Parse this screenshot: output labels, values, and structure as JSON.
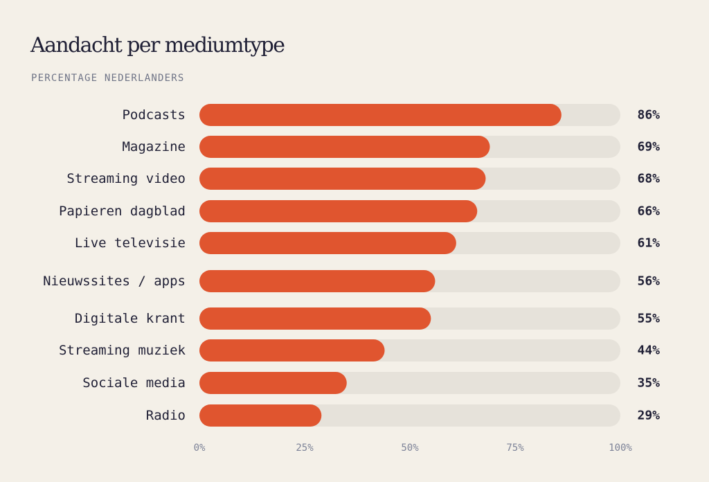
{
  "chart_data": {
    "type": "bar",
    "orientation": "horizontal",
    "title": "Aandacht per mediumtype",
    "subtitle": "PERCENTAGE NEDERLANDERS",
    "categories": [
      "Podcasts",
      "Magazine",
      "Streaming video",
      "Papieren dagblad",
      "Live televisie",
      "Nieuwssites / apps",
      "Digitale krant",
      "Streaming muziek",
      "Sociale media",
      "Radio"
    ],
    "values": [
      86,
      69,
      68,
      66,
      61,
      56,
      55,
      44,
      35,
      29
    ],
    "value_labels": [
      "86%",
      "69%",
      "68%",
      "66%",
      "61%",
      "56%",
      "55%",
      "44%",
      "35%",
      "29%"
    ],
    "x_ticks": [
      0,
      25,
      50,
      75,
      100
    ],
    "x_tick_labels": [
      "0%",
      "25%",
      "50%",
      "75%",
      "100%"
    ],
    "xlim": [
      0,
      100
    ],
    "grid": false,
    "legend": "none"
  },
  "colors": {
    "background": "#f4f0e8",
    "bar": "#e0552f",
    "track": "#e6e2da",
    "text": "#1f1f35",
    "muted": "#7d8398"
  }
}
